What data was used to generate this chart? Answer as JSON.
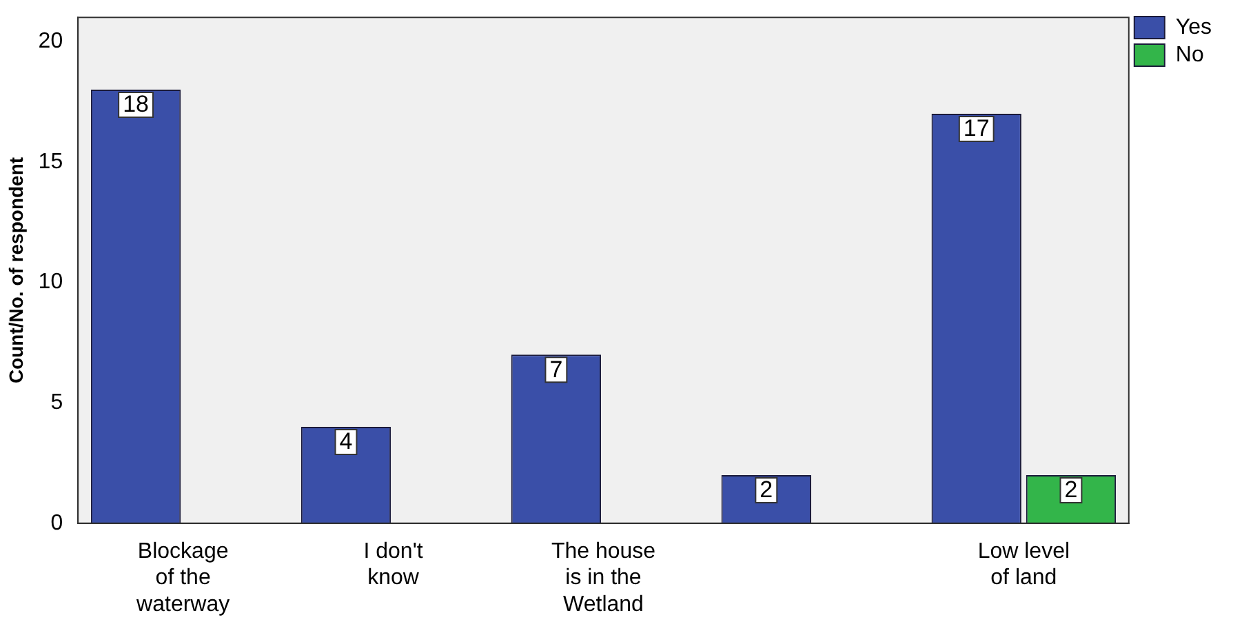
{
  "chart_data": {
    "type": "bar",
    "ylabel": "Count/No. of respondent",
    "categories": [
      "Blockage of the waterway",
      "I don't know",
      "The house is in the Wetland",
      null,
      "Low level of land"
    ],
    "series": [
      {
        "name": "Yes",
        "color": "#3a4fa8",
        "values": [
          18,
          4,
          7,
          2,
          17
        ]
      },
      {
        "name": "No",
        "color": "#33b54a",
        "values": [
          null,
          null,
          null,
          null,
          2
        ]
      }
    ],
    "ylim": [
      0,
      21
    ],
    "yticks": [
      0,
      5,
      10,
      15,
      20
    ],
    "grid": false,
    "legend": "top right",
    "data_labels": true
  }
}
